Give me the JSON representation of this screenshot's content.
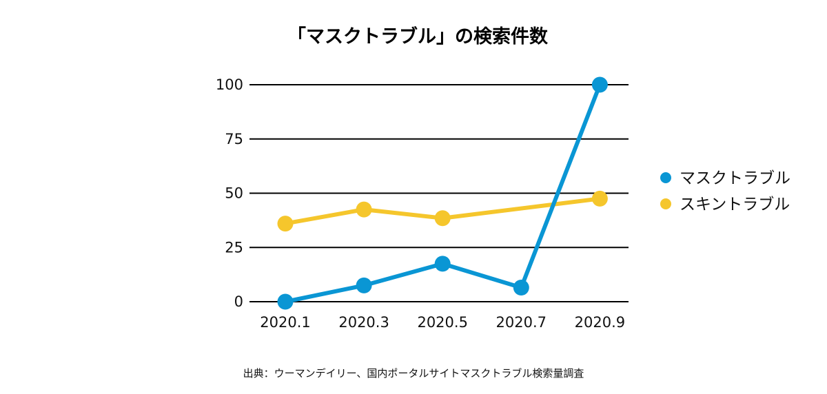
{
  "chart_data": {
    "type": "line",
    "title": "「マスクトラブル」の検索件数",
    "categories": [
      "2020.1",
      "2020.3",
      "2020.5",
      "2020.7",
      "2020.9"
    ],
    "x_positions": [
      0,
      1,
      2,
      3,
      4
    ],
    "ylim": [
      0,
      100
    ],
    "yticks": [
      0,
      25,
      50,
      75,
      100
    ],
    "grid": true,
    "legend_position": "right",
    "series": [
      {
        "name": "マスクトラブル",
        "color": "#0a96d4",
        "x": [
          0,
          1,
          2,
          3,
          4
        ],
        "values": [
          0,
          7.5,
          17.5,
          6.5,
          100
        ]
      },
      {
        "name": "スキントラブル",
        "color": "#f5c62c",
        "x": [
          0,
          1,
          2,
          3,
          4
        ],
        "values": [
          36,
          42.5,
          38.5,
          null,
          47.5
        ]
      }
    ],
    "source": "出典：ウーマンデイリー、国内ポータルサイトマスクトラブル検索量調査"
  }
}
